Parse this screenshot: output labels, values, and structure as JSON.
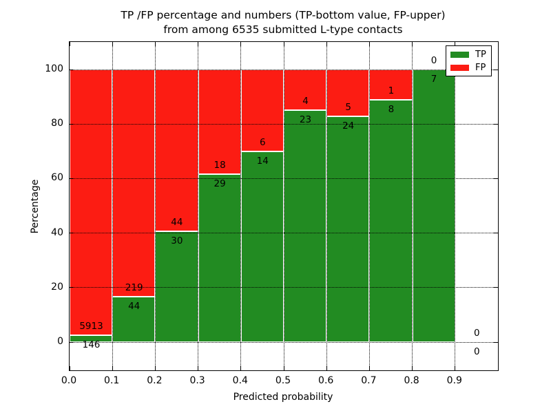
{
  "chart_data": {
    "type": "bar",
    "stacked": true,
    "normalized_to_percent": true,
    "title_line1": "TP /FP percentage and numbers (TP-bottom value, FP-upper)",
    "title_line2": "from among 6535 submitted L-type contacts",
    "xlabel": "Predicted probability",
    "ylabel": "Percentage",
    "total_contacts": 6535,
    "x_tick_labels": [
      "0.0",
      "0.1",
      "0.2",
      "0.3",
      "0.4",
      "0.5",
      "0.6",
      "0.7",
      "0.8",
      "0.9"
    ],
    "y_ticks": [
      0,
      20,
      40,
      60,
      80,
      100
    ],
    "xlim": [
      0.0,
      1.0
    ],
    "ylim": [
      -10.4,
      110.1
    ],
    "grid": "dotted",
    "bar_width": 0.1,
    "bins": [
      {
        "range": "0.0-0.1",
        "tp": 146,
        "fp": 5913,
        "tp_percent": 2.4
      },
      {
        "range": "0.1-0.2",
        "tp": 44,
        "fp": 219,
        "tp_percent": 16.7
      },
      {
        "range": "0.2-0.3",
        "tp": 30,
        "fp": 44,
        "tp_percent": 40.5
      },
      {
        "range": "0.3-0.4",
        "tp": 29,
        "fp": 18,
        "tp_percent": 61.7
      },
      {
        "range": "0.4-0.5",
        "tp": 14,
        "fp": 6,
        "tp_percent": 70.0
      },
      {
        "range": "0.5-0.6",
        "tp": 23,
        "fp": 4,
        "tp_percent": 85.2
      },
      {
        "range": "0.6-0.7",
        "tp": 24,
        "fp": 5,
        "tp_percent": 82.8
      },
      {
        "range": "0.7-0.8",
        "tp": 8,
        "fp": 1,
        "tp_percent": 88.9
      },
      {
        "range": "0.8-0.9",
        "tp": 7,
        "fp": 0,
        "tp_percent": 100.0
      },
      {
        "range": "0.9-1.0",
        "tp": 0,
        "fp": 0,
        "tp_percent": null
      }
    ],
    "legend": [
      {
        "label": "TP",
        "color": "#228b22"
      },
      {
        "label": "FP",
        "color": "#fc1c13"
      }
    ],
    "colors": {
      "tp": "#228b22",
      "fp": "#fc1c13",
      "grid": "#000000",
      "frame": "#000000"
    },
    "legend_position": "upper right"
  }
}
